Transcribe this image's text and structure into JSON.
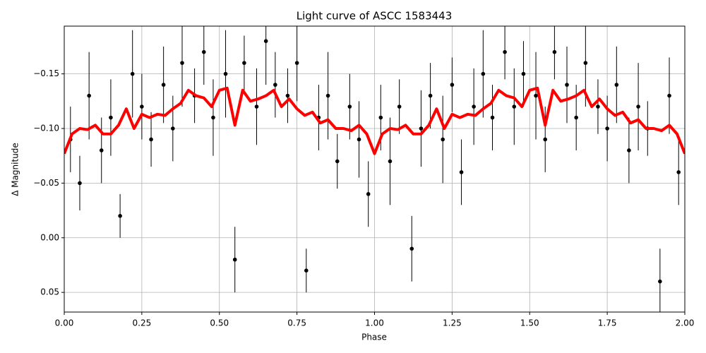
{
  "chart_data": {
    "type": "scatter",
    "title": "Light curve of ASCC 1583443",
    "xlabel": "Phase",
    "ylabel": "Δ Magnitude",
    "xlim": [
      0,
      2
    ],
    "ylim": [
      0.068,
      -0.1937
    ],
    "xticks": [
      {
        "value": 0,
        "label": "0.00"
      },
      {
        "value": 0.25,
        "label": "0.25"
      },
      {
        "value": 0.5,
        "label": "0.50"
      },
      {
        "value": 0.75,
        "label": "0.75"
      },
      {
        "value": 1,
        "label": "1.00"
      },
      {
        "value": 1.25,
        "label": "1.25"
      },
      {
        "value": 1.5,
        "label": "1.50"
      },
      {
        "value": 1.75,
        "label": "1.75"
      },
      {
        "value": 2,
        "label": "2.00"
      }
    ],
    "yticks": [
      {
        "value": -0.15,
        "label": "−0.15"
      },
      {
        "value": -0.1,
        "label": "−0.10"
      },
      {
        "value": -0.05,
        "label": "−0.05"
      },
      {
        "value": 0,
        "label": "0.00"
      },
      {
        "value": 0.05,
        "label": "0.05"
      }
    ],
    "grid": true,
    "series": [
      {
        "kind": "errorbar",
        "color": "#000000",
        "x": [
          0.02,
          0.05,
          0.08,
          0.12,
          0.15,
          0.18,
          0.22,
          0.25,
          0.28,
          0.32,
          0.35,
          0.38,
          0.42,
          0.45,
          0.48,
          0.52,
          0.55,
          0.58,
          0.62,
          0.65,
          0.68,
          0.72,
          0.75,
          0.78,
          0.82,
          0.85,
          0.88,
          0.92,
          0.95,
          0.98,
          1.02,
          1.05,
          1.08,
          1.12,
          1.15,
          1.18,
          1.22,
          1.25,
          1.28,
          1.32,
          1.35,
          1.38,
          1.42,
          1.45,
          1.48,
          1.52,
          1.55,
          1.58,
          1.62,
          1.65,
          1.68,
          1.72,
          1.75,
          1.78,
          1.82,
          1.85,
          1.88,
          1.92,
          1.95,
          1.98
        ],
        "values": [
          -0.09,
          -0.05,
          -0.13,
          -0.08,
          -0.11,
          -0.02,
          -0.15,
          -0.12,
          -0.09,
          -0.14,
          -0.1,
          -0.16,
          -0.13,
          -0.17,
          -0.11,
          -0.15,
          0.02,
          -0.16,
          -0.12,
          -0.18,
          -0.14,
          -0.13,
          -0.16,
          0.03,
          -0.11,
          -0.13,
          -0.07,
          -0.12,
          -0.09,
          -0.04,
          -0.11,
          -0.07,
          -0.12,
          0.01,
          -0.1,
          -0.13,
          -0.09,
          -0.14,
          -0.06,
          -0.12,
          -0.15,
          -0.11,
          -0.17,
          -0.12,
          -0.15,
          -0.13,
          -0.09,
          -0.17,
          -0.14,
          -0.11,
          -0.16,
          -0.12,
          -0.1,
          -0.14,
          -0.08,
          -0.12,
          -0.1,
          0.04,
          -0.13,
          -0.06
        ],
        "errors": [
          0.03,
          0.025,
          0.04,
          0.03,
          0.035,
          0.02,
          0.04,
          0.03,
          0.025,
          0.035,
          0.03,
          0.04,
          0.025,
          0.03,
          0.035,
          0.04,
          0.03,
          0.025,
          0.035,
          0.04,
          0.03,
          0.025,
          0.035,
          0.02,
          0.03,
          0.04,
          0.025,
          0.03,
          0.035,
          0.03,
          0.03,
          0.04,
          0.025,
          0.03,
          0.035,
          0.03,
          0.04,
          0.025,
          0.03,
          0.035,
          0.04,
          0.03,
          0.025,
          0.035,
          0.03,
          0.04,
          0.03,
          0.025,
          0.035,
          0.03,
          0.04,
          0.025,
          0.03,
          0.035,
          0.03,
          0.04,
          0.025,
          0.03,
          0.035,
          0.03
        ]
      },
      {
        "kind": "line",
        "color": "#ff0000",
        "x": [
          0,
          0.025,
          0.05,
          0.075,
          0.1,
          0.125,
          0.15,
          0.175,
          0.2,
          0.225,
          0.25,
          0.275,
          0.3,
          0.325,
          0.35,
          0.375,
          0.4,
          0.425,
          0.45,
          0.475,
          0.5,
          0.525,
          0.55,
          0.575,
          0.6,
          0.625,
          0.65,
          0.675,
          0.7,
          0.725,
          0.75,
          0.775,
          0.8,
          0.825,
          0.85,
          0.875,
          0.9,
          0.925,
          0.95,
          0.975,
          1,
          1.025,
          1.05,
          1.075,
          1.1,
          1.125,
          1.15,
          1.175,
          1.2,
          1.225,
          1.25,
          1.275,
          1.3,
          1.325,
          1.35,
          1.375,
          1.4,
          1.425,
          1.45,
          1.475,
          1.5,
          1.525,
          1.55,
          1.575,
          1.6,
          1.625,
          1.65,
          1.675,
          1.7,
          1.725,
          1.75,
          1.775,
          1.8,
          1.825,
          1.85,
          1.875,
          1.9,
          1.925,
          1.95,
          1.975,
          2
        ],
        "values": [
          -0.077,
          -0.095,
          -0.1,
          -0.099,
          -0.103,
          -0.095,
          -0.095,
          -0.103,
          -0.118,
          -0.1,
          -0.113,
          -0.11,
          -0.113,
          -0.112,
          -0.118,
          -0.123,
          -0.135,
          -0.13,
          -0.128,
          -0.12,
          -0.135,
          -0.137,
          -0.103,
          -0.135,
          -0.125,
          -0.127,
          -0.13,
          -0.135,
          -0.12,
          -0.127,
          -0.118,
          -0.112,
          -0.115,
          -0.105,
          -0.108,
          -0.1,
          -0.1,
          -0.098,
          -0.103,
          -0.095,
          -0.077,
          -0.095,
          -0.1,
          -0.099,
          -0.103,
          -0.095,
          -0.095,
          -0.103,
          -0.118,
          -0.1,
          -0.113,
          -0.11,
          -0.113,
          -0.112,
          -0.118,
          -0.123,
          -0.135,
          -0.13,
          -0.128,
          -0.12,
          -0.135,
          -0.137,
          -0.103,
          -0.135,
          -0.125,
          -0.127,
          -0.13,
          -0.135,
          -0.12,
          -0.127,
          -0.118,
          -0.112,
          -0.115,
          -0.105,
          -0.108,
          -0.1,
          -0.1,
          -0.098,
          -0.103,
          -0.095,
          -0.077
        ]
      }
    ]
  }
}
